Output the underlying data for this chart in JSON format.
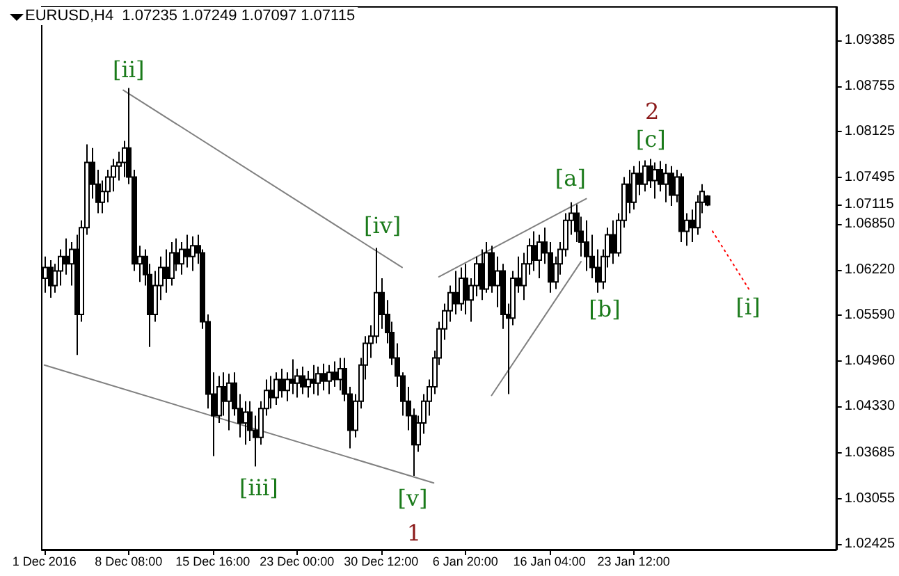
{
  "chart_data": {
    "type": "candlestick",
    "title": "EURUSD,H4  1.07235 1.07249 1.07097 1.07115",
    "categories": [
      "1 Dec 2016",
      null,
      null,
      null,
      null,
      null,
      null,
      null,
      null,
      null,
      null,
      null,
      null,
      null,
      null,
      null,
      "8 Dec 08:00",
      null,
      null,
      null,
      null,
      null,
      null,
      null,
      null,
      null,
      null,
      null,
      null,
      null,
      null,
      null,
      "15 Dec 16:00",
      null,
      null,
      null,
      null,
      null,
      null,
      null,
      null,
      null,
      null,
      null,
      null,
      null,
      null,
      null,
      "23 Dec 00:00",
      null,
      null,
      null,
      null,
      null,
      null,
      null,
      null,
      null,
      null,
      null,
      null,
      null,
      null,
      null,
      "30 Dec 12:00",
      null,
      null,
      null,
      null,
      null,
      null,
      null,
      null,
      null,
      null,
      null,
      null,
      null,
      null,
      null,
      "6 Jan 20:00",
      null,
      null,
      null,
      null,
      null,
      null,
      null,
      null,
      null,
      null,
      null,
      null,
      null,
      null,
      null,
      "16 Jan 04:00",
      null,
      null,
      null,
      null,
      null,
      null,
      null,
      null,
      null,
      null,
      null,
      null,
      null,
      null,
      null,
      "23 Jan 12:00",
      null,
      null,
      null,
      null,
      null,
      null,
      null,
      null,
      null,
      null,
      null,
      null,
      null,
      null,
      null,
      null,
      null,
      null,
      null,
      null,
      null,
      null,
      null,
      null,
      null,
      null,
      null,
      null,
      null,
      null,
      null,
      null,
      null,
      null,
      null,
      null,
      null,
      null
    ],
    "ylim": [
      1.0235,
      1.0985
    ],
    "yticks": [
      1.02425,
      1.03055,
      1.03685,
      {
        "value": 1.0433,
        "label": "1.04330"
      },
      {
        "value": 1.0496,
        "label": "1.04960"
      },
      {
        "value": 1.0559,
        "label": "1.05590"
      },
      {
        "value": 1.0622,
        "label": "1.06220"
      },
      {
        "value": 1.0685,
        "label": "1.06850"
      },
      1.07115,
      1.07495,
      1.08125,
      1.08755,
      1.09385
    ],
    "annotations": [
      "[ii]",
      "[iii]",
      "[iv]",
      "[v]",
      "1",
      "[a]",
      "[b]",
      "[c]",
      "2",
      "[i]"
    ],
    "series": [
      {
        "color": "#000000",
        "ohlc": [
          [
            1.061,
            1.064,
            1.059,
            1.0625
          ],
          [
            1.0625,
            1.0635,
            1.0583,
            1.06
          ],
          [
            1.06,
            1.063,
            1.059,
            1.062
          ],
          [
            1.062,
            1.065,
            1.06,
            1.064
          ],
          [
            1.064,
            1.0665,
            1.0615,
            1.063
          ],
          [
            1.063,
            1.066,
            1.06,
            1.065
          ],
          [
            1.065,
            1.067,
            1.0504,
            1.056
          ],
          [
            1.056,
            1.069,
            1.055,
            1.068
          ],
          [
            1.068,
            1.0795,
            1.067,
            1.077
          ],
          [
            1.077,
            1.079,
            1.072,
            1.074
          ],
          [
            1.074,
            1.076,
            1.07,
            1.0715
          ],
          [
            1.0715,
            1.0745,
            1.07,
            1.073
          ],
          [
            1.073,
            1.076,
            1.0715,
            1.075
          ],
          [
            1.075,
            1.0775,
            1.073,
            1.0765
          ],
          [
            1.0765,
            1.0785,
            1.0745,
            1.077
          ],
          [
            1.077,
            1.08,
            1.075,
            1.079
          ],
          [
            1.079,
            1.0873,
            1.074,
            1.075
          ],
          [
            1.075,
            1.076,
            1.062,
            1.063
          ],
          [
            1.063,
            1.0655,
            1.0605,
            1.064
          ],
          [
            1.064,
            1.065,
            1.06,
            1.0615
          ],
          [
            1.0615,
            1.063,
            1.0515,
            1.056
          ],
          [
            1.056,
            1.062,
            1.055,
            1.06
          ],
          [
            1.06,
            1.064,
            1.058,
            1.0625
          ],
          [
            1.0625,
            1.065,
            1.059,
            1.061
          ],
          [
            1.061,
            1.066,
            1.06,
            1.0645
          ],
          [
            1.0645,
            1.0665,
            1.062,
            1.063
          ],
          [
            1.063,
            1.066,
            1.0615,
            1.065
          ],
          [
            1.065,
            1.067,
            1.0625,
            1.064
          ],
          [
            1.064,
            1.0668,
            1.062,
            1.0655
          ],
          [
            1.0655,
            1.067,
            1.063,
            1.0645
          ],
          [
            1.0645,
            1.065,
            1.054,
            1.055
          ],
          [
            1.055,
            1.056,
            1.043,
            1.045
          ],
          [
            1.045,
            1.048,
            1.0364,
            1.042
          ],
          [
            1.042,
            1.0475,
            1.041,
            1.046
          ],
          [
            1.046,
            1.048,
            1.042,
            1.044
          ],
          [
            1.044,
            1.0478,
            1.04,
            1.0465
          ],
          [
            1.0465,
            1.048,
            1.042,
            1.043
          ],
          [
            1.043,
            1.045,
            1.039,
            1.041
          ],
          [
            1.041,
            1.044,
            1.038,
            1.0425
          ],
          [
            1.0425,
            1.044,
            1.0385,
            1.04
          ],
          [
            1.04,
            1.042,
            1.035,
            1.039
          ],
          [
            1.039,
            1.044,
            1.038,
            1.043
          ],
          [
            1.043,
            1.047,
            1.042,
            1.0455
          ],
          [
            1.0455,
            1.0475,
            1.043,
            1.0445
          ],
          [
            1.0445,
            1.048,
            1.0435,
            1.047
          ],
          [
            1.047,
            1.0485,
            1.0445,
            1.0455
          ],
          [
            1.0455,
            1.048,
            1.044,
            1.047
          ],
          [
            1.047,
            1.0498,
            1.045,
            1.0465
          ],
          [
            1.0465,
            1.0485,
            1.0445,
            1.0475
          ],
          [
            1.0475,
            1.0488,
            1.045,
            1.046
          ],
          [
            1.046,
            1.0482,
            1.0445,
            1.047
          ],
          [
            1.047,
            1.049,
            1.045,
            1.0465
          ],
          [
            1.0465,
            1.0488,
            1.0448,
            1.0478
          ],
          [
            1.0478,
            1.0492,
            1.0455,
            1.0468
          ],
          [
            1.0468,
            1.049,
            1.045,
            1.048
          ],
          [
            1.048,
            1.0495,
            1.046,
            1.047
          ],
          [
            1.047,
            1.05,
            1.0455,
            1.0485
          ],
          [
            1.0485,
            1.05,
            1.044,
            1.045
          ],
          [
            1.045,
            1.046,
            1.0375,
            1.04
          ],
          [
            1.04,
            1.045,
            1.039,
            1.044
          ],
          [
            1.044,
            1.05,
            1.043,
            1.049
          ],
          [
            1.049,
            1.053,
            1.047,
            1.052
          ],
          [
            1.052,
            1.0545,
            1.05,
            1.053
          ],
          [
            1.053,
            1.0652,
            1.052,
            1.059
          ],
          [
            1.059,
            1.061,
            1.054,
            1.056
          ],
          [
            1.056,
            1.058,
            1.052,
            1.0535
          ],
          [
            1.0535,
            1.055,
            1.049,
            1.05
          ],
          [
            1.05,
            1.052,
            1.046,
            1.0475
          ],
          [
            1.0475,
            1.048,
            1.042,
            1.044
          ],
          [
            1.044,
            1.046,
            1.04,
            1.042
          ],
          [
            1.042,
            1.043,
            1.0337,
            1.038
          ],
          [
            1.038,
            1.042,
            1.037,
            1.041
          ],
          [
            1.041,
            1.045,
            1.0395,
            1.044
          ],
          [
            1.044,
            1.047,
            1.042,
            1.046
          ],
          [
            1.046,
            1.051,
            1.045,
            1.05
          ],
          [
            1.05,
            1.055,
            1.049,
            1.054
          ],
          [
            1.054,
            1.0575,
            1.0525,
            1.0565
          ],
          [
            1.0565,
            1.06,
            1.055,
            1.059
          ],
          [
            1.059,
            1.062,
            1.056,
            1.0575
          ],
          [
            1.0575,
            1.0625,
            1.0565,
            1.061
          ],
          [
            1.061,
            1.063,
            1.056,
            1.058
          ],
          [
            1.058,
            1.061,
            1.055,
            1.06
          ],
          [
            1.06,
            1.064,
            1.0585,
            1.063
          ],
          [
            1.063,
            1.065,
            1.058,
            1.0595
          ],
          [
            1.0595,
            1.066,
            1.059,
            1.0645
          ],
          [
            1.0645,
            1.0655,
            1.059,
            1.06
          ],
          [
            1.06,
            1.064,
            1.057,
            1.062
          ],
          [
            1.062,
            1.063,
            1.054,
            1.056
          ],
          [
            1.056,
            1.0575,
            1.045,
            1.0555
          ],
          [
            1.0555,
            1.062,
            1.0545,
            1.061
          ],
          [
            1.061,
            1.064,
            1.059,
            1.06
          ],
          [
            1.06,
            1.0645,
            1.058,
            1.063
          ],
          [
            1.063,
            1.0665,
            1.0615,
            1.0655
          ],
          [
            1.0655,
            1.0675,
            1.062,
            1.0635
          ],
          [
            1.0635,
            1.067,
            1.061,
            1.066
          ],
          [
            1.066,
            1.068,
            1.063,
            1.0645
          ],
          [
            1.0645,
            1.066,
            1.059,
            1.0605
          ],
          [
            1.0605,
            1.064,
            1.0595,
            1.063
          ],
          [
            1.063,
            1.066,
            1.0615,
            1.065
          ],
          [
            1.065,
            1.07,
            1.064,
            1.069
          ],
          [
            1.069,
            1.0715,
            1.067,
            1.07
          ],
          [
            1.07,
            1.0712,
            1.066,
            1.0675
          ],
          [
            1.0675,
            1.0695,
            1.064,
            1.066
          ],
          [
            1.066,
            1.069,
            1.062,
            1.064
          ],
          [
            1.064,
            1.067,
            1.061,
            1.0625
          ],
          [
            1.0625,
            1.065,
            1.059,
            1.0605
          ],
          [
            1.0605,
            1.065,
            1.0595,
            1.064
          ],
          [
            1.064,
            1.068,
            1.0625,
            1.067
          ],
          [
            1.067,
            1.069,
            1.063,
            1.0645
          ],
          [
            1.0645,
            1.07,
            1.064,
            1.069
          ],
          [
            1.069,
            1.075,
            1.068,
            1.074
          ],
          [
            1.074,
            1.076,
            1.07,
            1.0715
          ],
          [
            1.0715,
            1.0765,
            1.0705,
            1.0755
          ],
          [
            1.0755,
            1.0772,
            1.0725,
            1.074
          ],
          [
            1.074,
            1.0773,
            1.073,
            1.0765
          ],
          [
            1.0765,
            1.0775,
            1.0735,
            1.0745
          ],
          [
            1.0745,
            1.077,
            1.072,
            1.076
          ],
          [
            1.076,
            1.0772,
            1.073,
            1.074
          ],
          [
            1.074,
            1.0768,
            1.0715,
            1.0755
          ],
          [
            1.0755,
            1.0765,
            1.071,
            1.0725
          ],
          [
            1.0725,
            1.076,
            1.0715,
            1.075
          ],
          [
            1.075,
            1.0755,
            1.066,
            1.0675
          ],
          [
            1.0675,
            1.07,
            1.0655,
            1.069
          ],
          [
            1.069,
            1.0705,
            1.066,
            1.068
          ],
          [
            1.068,
            1.0725,
            1.067,
            1.0715
          ],
          [
            1.0715,
            1.074,
            1.07,
            1.073
          ],
          [
            1.07235,
            1.07249,
            1.07097,
            1.07115
          ],
          null,
          null,
          null,
          null,
          null,
          null,
          null,
          null,
          null,
          null,
          null,
          null,
          null,
          null,
          null,
          null,
          null,
          null,
          null,
          null,
          null,
          null,
          null,
          null
        ]
      },
      {
        "type": "line",
        "color": "#808080",
        "line_style": "solid",
        "values": [
          null,
          null,
          null,
          null,
          null,
          null,
          null,
          null,
          null,
          null,
          null,
          null,
          null,
          null,
          null,
          1.087,
          null,
          null,
          null,
          null,
          null,
          null,
          null,
          null,
          null,
          null,
          null,
          null,
          null,
          null,
          null,
          null,
          null,
          null,
          null,
          null,
          null,
          null,
          null,
          null,
          null,
          null,
          null,
          null,
          null,
          null,
          null,
          null,
          null,
          null,
          null,
          null,
          null,
          null,
          null,
          null,
          null,
          null,
          null,
          null,
          null,
          null,
          null,
          null,
          null,
          null,
          null,
          null,
          1.0625,
          null,
          null,
          null,
          null,
          null,
          null,
          null,
          null,
          null,
          null,
          null,
          null,
          null,
          null,
          null,
          null,
          null,
          null,
          null,
          null,
          null,
          null,
          null,
          null,
          null,
          null,
          null,
          null,
          null,
          null,
          null,
          null,
          null,
          null,
          null,
          null,
          null,
          null,
          null,
          null,
          null,
          null,
          null,
          null,
          null,
          null,
          null,
          null,
          null,
          null,
          null,
          null,
          null,
          null,
          null,
          null,
          null,
          null,
          null,
          null,
          null,
          null,
          null,
          null,
          null,
          null,
          null,
          null,
          null,
          null,
          null,
          null,
          null,
          null,
          null,
          null,
          null,
          null,
          null,
          null,
          null,
          null
        ]
      },
      {
        "type": "line",
        "color": "#808080",
        "line_style": "solid",
        "values": [
          1.049,
          null,
          null,
          null,
          null,
          null,
          null,
          null,
          null,
          null,
          null,
          null,
          null,
          null,
          null,
          null,
          null,
          null,
          null,
          null,
          null,
          null,
          null,
          null,
          null,
          null,
          null,
          null,
          null,
          null,
          null,
          null,
          null,
          null,
          null,
          null,
          null,
          null,
          null,
          null,
          null,
          null,
          null,
          null,
          null,
          null,
          null,
          null,
          null,
          null,
          null,
          null,
          null,
          null,
          null,
          null,
          null,
          null,
          null,
          null,
          null,
          null,
          null,
          null,
          null,
          null,
          null,
          null,
          null,
          null,
          null,
          null,
          null,
          null,
          1.0327,
          null,
          null,
          null,
          null,
          null,
          null,
          null,
          null,
          null,
          null,
          null,
          null,
          null,
          null,
          null,
          null,
          null,
          null,
          null,
          null,
          null,
          null,
          null,
          null,
          null,
          null,
          null,
          null,
          null,
          null,
          null,
          null,
          null,
          null,
          null,
          null,
          null,
          null,
          null,
          null,
          null,
          null,
          null,
          null,
          null,
          null,
          null,
          null,
          null,
          null,
          null,
          null,
          null,
          null,
          null,
          null,
          null,
          null,
          null,
          null,
          null,
          null,
          null,
          null,
          null,
          null,
          null,
          null,
          null,
          null,
          null,
          null,
          null,
          null,
          null,
          null
        ]
      },
      {
        "type": "line",
        "color": "#808080",
        "line_style": "solid",
        "values": [
          null,
          null,
          null,
          null,
          null,
          null,
          null,
          null,
          null,
          null,
          null,
          null,
          null,
          null,
          null,
          null,
          null,
          null,
          null,
          null,
          null,
          null,
          null,
          null,
          null,
          null,
          null,
          null,
          null,
          null,
          null,
          null,
          null,
          null,
          null,
          null,
          null,
          null,
          null,
          null,
          null,
          null,
          null,
          null,
          null,
          null,
          null,
          null,
          null,
          null,
          null,
          null,
          null,
          null,
          null,
          null,
          null,
          null,
          null,
          null,
          null,
          null,
          null,
          null,
          null,
          null,
          null,
          null,
          null,
          null,
          null,
          null,
          null,
          null,
          null,
          1.0612,
          null,
          null,
          null,
          null,
          null,
          null,
          null,
          null,
          null,
          null,
          null,
          null,
          null,
          null,
          null,
          null,
          null,
          null,
          null,
          null,
          null,
          null,
          null,
          null,
          null,
          null,
          null,
          1.072,
          null,
          null,
          null,
          null,
          null,
          null,
          null,
          null,
          null,
          null,
          null,
          null,
          null,
          null,
          null,
          null,
          null,
          null,
          null,
          null,
          null,
          null,
          null,
          null,
          null,
          null,
          null,
          null,
          null,
          null,
          null,
          null,
          null,
          null,
          null,
          null,
          null,
          null,
          null,
          null,
          null,
          null,
          null,
          null,
          null,
          null,
          null
        ]
      },
      {
        "type": "line",
        "color": "#808080",
        "line_style": "solid",
        "values": [
          null,
          null,
          null,
          null,
          null,
          null,
          null,
          null,
          null,
          null,
          null,
          null,
          null,
          null,
          null,
          null,
          null,
          null,
          null,
          null,
          null,
          null,
          null,
          null,
          null,
          null,
          null,
          null,
          null,
          null,
          null,
          null,
          null,
          null,
          null,
          null,
          null,
          null,
          null,
          null,
          null,
          null,
          null,
          null,
          null,
          null,
          null,
          null,
          null,
          null,
          null,
          null,
          null,
          null,
          null,
          null,
          null,
          null,
          null,
          null,
          null,
          null,
          null,
          null,
          null,
          null,
          null,
          null,
          null,
          null,
          null,
          null,
          null,
          null,
          null,
          null,
          null,
          null,
          null,
          null,
          null,
          null,
          null,
          null,
          null,
          1.0448,
          null,
          null,
          null,
          null,
          null,
          null,
          null,
          null,
          null,
          null,
          null,
          null,
          null,
          null,
          null,
          null,
          1.0633,
          null,
          null,
          null,
          null,
          null,
          null,
          null,
          null,
          null,
          null,
          null,
          null,
          null,
          null,
          null,
          null,
          null,
          null,
          null,
          null,
          null,
          null,
          null,
          null,
          null,
          null,
          null,
          null,
          null,
          null,
          null,
          null,
          null,
          null,
          null,
          null,
          null,
          null,
          null,
          null,
          null,
          null,
          null,
          null,
          null,
          null,
          null,
          null
        ]
      },
      {
        "type": "line",
        "color": "#ff0000",
        "line_style": "dotted",
        "values": [
          null,
          null,
          null,
          null,
          null,
          null,
          null,
          null,
          null,
          null,
          null,
          null,
          null,
          null,
          null,
          null,
          null,
          null,
          null,
          null,
          null,
          null,
          null,
          null,
          null,
          null,
          null,
          null,
          null,
          null,
          null,
          null,
          null,
          null,
          null,
          null,
          null,
          null,
          null,
          null,
          null,
          null,
          null,
          null,
          null,
          null,
          null,
          null,
          null,
          null,
          null,
          null,
          null,
          null,
          null,
          null,
          null,
          null,
          null,
          null,
          null,
          null,
          null,
          null,
          null,
          null,
          null,
          null,
          null,
          null,
          null,
          null,
          null,
          null,
          null,
          null,
          null,
          null,
          null,
          null,
          null,
          null,
          null,
          null,
          null,
          null,
          null,
          null,
          null,
          null,
          null,
          null,
          null,
          null,
          null,
          null,
          null,
          null,
          null,
          null,
          null,
          null,
          null,
          null,
          null,
          null,
          null,
          null,
          null,
          null,
          null,
          null,
          null,
          null,
          null,
          null,
          null,
          null,
          null,
          null,
          null,
          null,
          null,
          null,
          null,
          null,
          null,
          1.0675,
          null,
          null,
          null,
          null,
          null,
          null,
          1.0594,
          null,
          null,
          null,
          null,
          null,
          null,
          null,
          null,
          null,
          null,
          null,
          null,
          null,
          null,
          null,
          null
        ]
      }
    ]
  }
}
